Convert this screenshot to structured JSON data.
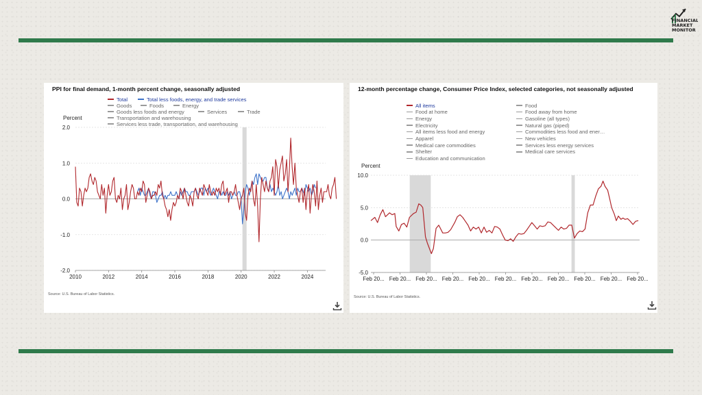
{
  "colors": {
    "background": "#eceae5",
    "brand_bar": "#2f7a4b",
    "series_red": "#b0262b",
    "series_blue": "#3d72c9",
    "shade": "#d9d9d9"
  },
  "logo": {
    "line1": "FINANCIAL",
    "line2": "MARKET",
    "line3": "MONITOR",
    "icon": "chart-arrow-icon"
  },
  "chart_data": [
    {
      "type": "line",
      "title": "PPI for final demand, 1-month percent change, seasonally adjusted",
      "ylabel": "Percent",
      "ylim": [
        -2.0,
        2.0
      ],
      "yticks": [
        "2.0",
        "1.0",
        "0.0",
        "-1.0",
        "-2.0"
      ],
      "xticks": [
        "2010",
        "2012",
        "2014",
        "2016",
        "2018",
        "2020",
        "2022",
        "2024"
      ],
      "x_range": [
        2010,
        2025.1
      ],
      "recession_shade": [
        2020.08,
        2020.33
      ],
      "grid": true,
      "legend": [
        {
          "label": "Total",
          "color": "#b0262b",
          "active": true
        },
        {
          "label": "Total less foods, energy, and trade services",
          "color": "#3d72c9",
          "active": true
        },
        {
          "label": "Goods",
          "color": "#9a9a9a",
          "active": false
        },
        {
          "label": "Foods",
          "color": "#9a9a9a",
          "active": false
        },
        {
          "label": "Energy",
          "color": "#9a9a9a",
          "active": false
        },
        {
          "label": "Goods less foods and energy",
          "color": "#9a9a9a",
          "active": false
        },
        {
          "label": "Services",
          "color": "#9a9a9a",
          "active": false
        },
        {
          "label": "Trade",
          "color": "#9a9a9a",
          "active": false
        },
        {
          "label": "Transportation and warehousing",
          "color": "#9a9a9a",
          "active": false
        },
        {
          "label": "Services less trade, transportation, and warehousing",
          "color": "#9a9a9a",
          "active": false
        }
      ],
      "series": [
        {
          "name": "Total",
          "color": "#b0262b",
          "x_start": 2010.0,
          "x_step": 0.0833,
          "values": [
            0.9,
            -0.1,
            -0.2,
            0.3,
            0.2,
            -0.2,
            0.1,
            0.3,
            0.2,
            0.3,
            0.6,
            0.7,
            0.5,
            0.4,
            0.6,
            0.5,
            0.2,
            0.1,
            0.0,
            0.4,
            0.1,
            0.3,
            -0.4,
            0.1,
            0.4,
            0.1,
            0.2,
            0.5,
            0.6,
            0.0,
            -0.1,
            0.1,
            0.0,
            0.3,
            -0.3,
            0.0,
            0.1,
            0.4,
            -0.3,
            -0.1,
            0.2,
            0.4,
            0.3,
            0.0,
            0.0,
            0.2,
            0.1,
            0.3,
            0.2,
            0.5,
            0.4,
            -0.1,
            0.1,
            0.3,
            0.2,
            0.0,
            0.1,
            0.1,
            0.2,
            0.1,
            0.4,
            0.3,
            0.5,
            0.1,
            0.0,
            -0.2,
            -0.3,
            -0.5,
            -0.3,
            -0.6,
            -0.3,
            -0.1,
            -0.2,
            -0.1,
            0.1,
            0.0,
            0.3,
            0.2,
            0.0,
            0.3,
            0.1,
            -0.1,
            -0.2,
            0.1,
            0.0,
            -0.2,
            0.2,
            0.3,
            0.1,
            0.0,
            0.3,
            0.2,
            0.1,
            0.4,
            0.3,
            0.2,
            0.1,
            0.4,
            0.2,
            0.1,
            0.2,
            0.1,
            0.3,
            0.2,
            0.3,
            0.1,
            0.4,
            0.5,
            0.1,
            0.2,
            0.3,
            -0.1,
            0.2,
            0.2,
            0.1,
            0.2,
            0.4,
            0.1,
            -0.1,
            -0.3,
            0.0,
            0.1,
            0.3,
            -0.4,
            -0.6,
            0.1,
            0.3,
            0.2,
            0.5,
            0.0,
            -0.2,
            0.4,
            -0.2,
            -1.2,
            0.0,
            0.6,
            0.4,
            0.2,
            0.5,
            0.3,
            0.2,
            0.5,
            0.6,
            0.9,
            0.1,
            1.1,
            0.9,
            0.3,
            0.8,
            1.0,
            1.2,
            0.5,
            0.7,
            1.1,
            0.2,
            0.8,
            1.7,
            0.9,
            0.4,
            1.0,
            0.3,
            0.1,
            -0.1,
            0.2,
            0.3,
            -0.1,
            0.3,
            -0.3,
            0.2,
            0.4,
            -0.4,
            0.1,
            0.4,
            0.2,
            -0.2,
            0.5,
            -0.3,
            0.1,
            0.3,
            -0.1,
            0.2,
            0.2,
            0.2,
            0.4,
            0.1,
            0.0,
            0.3,
            0.4,
            0.6,
            0.0
          ]
        },
        {
          "name": "Total less foods, energy, and trade services",
          "color": "#3d72c9",
          "x_start": 2013.75,
          "x_step": 0.0833,
          "values": [
            0.2,
            0.3,
            0.1,
            0.3,
            0.2,
            0.1,
            0.1,
            0.2,
            0.3,
            0.1,
            0.0,
            0.2,
            0.2,
            0.1,
            -0.1,
            0.0,
            0.1,
            0.1,
            0.2,
            0.0,
            0.1,
            0.0,
            0.1,
            0.1,
            0.2,
            0.1,
            0.1,
            0.1,
            0.2,
            0.1,
            0.0,
            0.2,
            0.1,
            0.2,
            0.3,
            0.2,
            0.2,
            0.1,
            0.1,
            0.2,
            0.2,
            0.2,
            0.3,
            0.2,
            0.1,
            0.2,
            0.3,
            0.3,
            0.1,
            0.3,
            0.2,
            0.3,
            0.2,
            0.1,
            0.2,
            0.3,
            0.2,
            0.1,
            0.0,
            0.2,
            0.2,
            0.1,
            0.2,
            0.1,
            0.1,
            0.2,
            0.1,
            0.2,
            0.0,
            0.1,
            0.2,
            0.1,
            0.1,
            0.2,
            0.2,
            0.0,
            -0.7,
            -0.3,
            0.2,
            0.4,
            0.3,
            0.1,
            0.3,
            0.5,
            0.4,
            0.6,
            0.7,
            0.4,
            0.7,
            0.6,
            0.5,
            0.5,
            0.6,
            0.6,
            0.3,
            0.2,
            0.4,
            0.2,
            0.3,
            0.2,
            0.1,
            0.2,
            0.4,
            0.1,
            0.2,
            0.0,
            0.1,
            0.2,
            0.3,
            0.2,
            0.0,
            0.2,
            0.1,
            0.2,
            0.3,
            0.1,
            0.3,
            0.2,
            0.2,
            0.3,
            0.2,
            0.1,
            0.4,
            0.3,
            0.2,
            0.3,
            0.1,
            0.2,
            0.4,
            0.3
          ]
        }
      ],
      "source": "Source: U.S. Bureau of Labor Statistics."
    },
    {
      "type": "line",
      "title": "12-month percentage change, Consumer Price Index, selected categories, not seasonally adjusted",
      "ylabel": "Percent",
      "ylim": [
        -5.0,
        10.0
      ],
      "yticks": [
        "10.0",
        "5.0",
        "0.0",
        "-5.0"
      ],
      "xticks": [
        "Feb 20...",
        "Feb 20...",
        "Feb 20...",
        "Feb 20...",
        "Feb 20...",
        "Feb 20...",
        "Feb 20...",
        "Feb 20...",
        "Feb 20...",
        "Feb 20...",
        "Feb 20..."
      ],
      "x_range": [
        2005.0,
        2025.2
      ],
      "recession_shade_1": [
        2007.92,
        2009.5
      ],
      "recession_shade_2": [
        2020.08,
        2020.33
      ],
      "grid": true,
      "legend": [
        {
          "label": "All items",
          "color": "#b0262b",
          "active": true
        },
        {
          "label": "Food",
          "color": "#9a9a9a",
          "active": false
        },
        {
          "label": "Food at home",
          "color": "#9a9a9a",
          "active": false
        },
        {
          "label": "Food away from home",
          "color": "#9a9a9a",
          "active": false
        },
        {
          "label": "Energy",
          "color": "#9a9a9a",
          "active": false
        },
        {
          "label": "Gasoline (all types)",
          "color": "#9a9a9a",
          "active": false
        },
        {
          "label": "Electricity",
          "color": "#9a9a9a",
          "active": false
        },
        {
          "label": "Natural gas (piped)",
          "color": "#9a9a9a",
          "active": false
        },
        {
          "label": "All items less food and energy",
          "color": "#9a9a9a",
          "active": false
        },
        {
          "label": "Commodities less food and ener…",
          "color": "#9a9a9a",
          "active": false
        },
        {
          "label": "Apparel",
          "color": "#9a9a9a",
          "active": false
        },
        {
          "label": "New vehicles",
          "color": "#9a9a9a",
          "active": false
        },
        {
          "label": "Medical care commodities",
          "color": "#9a9a9a",
          "active": false
        },
        {
          "label": "Services less energy services",
          "color": "#9a9a9a",
          "active": false
        },
        {
          "label": "Shelter",
          "color": "#9a9a9a",
          "active": false
        },
        {
          "label": "Medical care services",
          "color": "#9a9a9a",
          "active": false
        },
        {
          "label": "Education and communication",
          "color": "#9a9a9a",
          "active": false
        }
      ],
      "series": [
        {
          "name": "All items",
          "color": "#b0262b",
          "points": [
            [
              2005.0,
              3.0
            ],
            [
              2005.3,
              3.5
            ],
            [
              2005.5,
              2.7
            ],
            [
              2005.7,
              3.9
            ],
            [
              2005.9,
              4.7
            ],
            [
              2006.1,
              3.6
            ],
            [
              2006.4,
              4.2
            ],
            [
              2006.6,
              3.9
            ],
            [
              2006.8,
              4.1
            ],
            [
              2006.9,
              2.1
            ],
            [
              2007.1,
              1.4
            ],
            [
              2007.3,
              2.4
            ],
            [
              2007.5,
              2.6
            ],
            [
              2007.7,
              2.0
            ],
            [
              2007.9,
              3.5
            ],
            [
              2008.2,
              4.1
            ],
            [
              2008.4,
              4.3
            ],
            [
              2008.6,
              5.6
            ],
            [
              2008.75,
              5.4
            ],
            [
              2008.9,
              5.0
            ],
            [
              2009.1,
              0.5
            ],
            [
              2009.25,
              -0.5
            ],
            [
              2009.4,
              -1.3
            ],
            [
              2009.55,
              -2.1
            ],
            [
              2009.7,
              -1.3
            ],
            [
              2009.9,
              1.8
            ],
            [
              2010.1,
              2.3
            ],
            [
              2010.4,
              1.1
            ],
            [
              2010.6,
              1.1
            ],
            [
              2010.8,
              1.2
            ],
            [
              2011.0,
              1.6
            ],
            [
              2011.3,
              2.7
            ],
            [
              2011.5,
              3.6
            ],
            [
              2011.7,
              3.9
            ],
            [
              2011.9,
              3.5
            ],
            [
              2012.1,
              2.9
            ],
            [
              2012.3,
              2.3
            ],
            [
              2012.5,
              1.4
            ],
            [
              2012.7,
              2.0
            ],
            [
              2012.9,
              1.7
            ],
            [
              2013.1,
              2.0
            ],
            [
              2013.3,
              1.1
            ],
            [
              2013.5,
              2.0
            ],
            [
              2013.7,
              1.2
            ],
            [
              2013.9,
              1.5
            ],
            [
              2014.1,
              1.1
            ],
            [
              2014.3,
              2.1
            ],
            [
              2014.5,
              2.0
            ],
            [
              2014.7,
              1.7
            ],
            [
              2014.9,
              0.8
            ],
            [
              2015.1,
              0.0
            ],
            [
              2015.3,
              -0.1
            ],
            [
              2015.5,
              0.2
            ],
            [
              2015.7,
              -0.2
            ],
            [
              2015.9,
              0.5
            ],
            [
              2016.1,
              1.0
            ],
            [
              2016.3,
              0.9
            ],
            [
              2016.5,
              1.0
            ],
            [
              2016.7,
              1.5
            ],
            [
              2016.9,
              2.1
            ],
            [
              2017.1,
              2.7
            ],
            [
              2017.3,
              2.2
            ],
            [
              2017.5,
              1.7
            ],
            [
              2017.7,
              2.2
            ],
            [
              2017.9,
              2.1
            ],
            [
              2018.1,
              2.2
            ],
            [
              2018.3,
              2.8
            ],
            [
              2018.5,
              2.7
            ],
            [
              2018.7,
              2.3
            ],
            [
              2018.9,
              1.9
            ],
            [
              2019.1,
              1.5
            ],
            [
              2019.3,
              2.0
            ],
            [
              2019.5,
              1.7
            ],
            [
              2019.7,
              1.8
            ],
            [
              2019.9,
              2.3
            ],
            [
              2020.1,
              2.3
            ],
            [
              2020.3,
              0.3
            ],
            [
              2020.5,
              1.0
            ],
            [
              2020.7,
              1.4
            ],
            [
              2020.9,
              1.3
            ],
            [
              2021.1,
              1.7
            ],
            [
              2021.3,
              4.2
            ],
            [
              2021.5,
              5.4
            ],
            [
              2021.7,
              5.4
            ],
            [
              2021.9,
              6.8
            ],
            [
              2022.1,
              7.9
            ],
            [
              2022.3,
              8.3
            ],
            [
              2022.45,
              9.1
            ],
            [
              2022.6,
              8.3
            ],
            [
              2022.8,
              7.7
            ],
            [
              2022.95,
              6.4
            ],
            [
              2023.1,
              5.0
            ],
            [
              2023.3,
              4.0
            ],
            [
              2023.45,
              3.0
            ],
            [
              2023.6,
              3.7
            ],
            [
              2023.8,
              3.2
            ],
            [
              2023.95,
              3.4
            ],
            [
              2024.1,
              3.2
            ],
            [
              2024.3,
              3.3
            ],
            [
              2024.5,
              2.9
            ],
            [
              2024.7,
              2.4
            ],
            [
              2024.9,
              2.9
            ],
            [
              2025.1,
              3.0
            ]
          ]
        }
      ],
      "source": "Source: U.S. Bureau of Labor Statistics."
    }
  ]
}
